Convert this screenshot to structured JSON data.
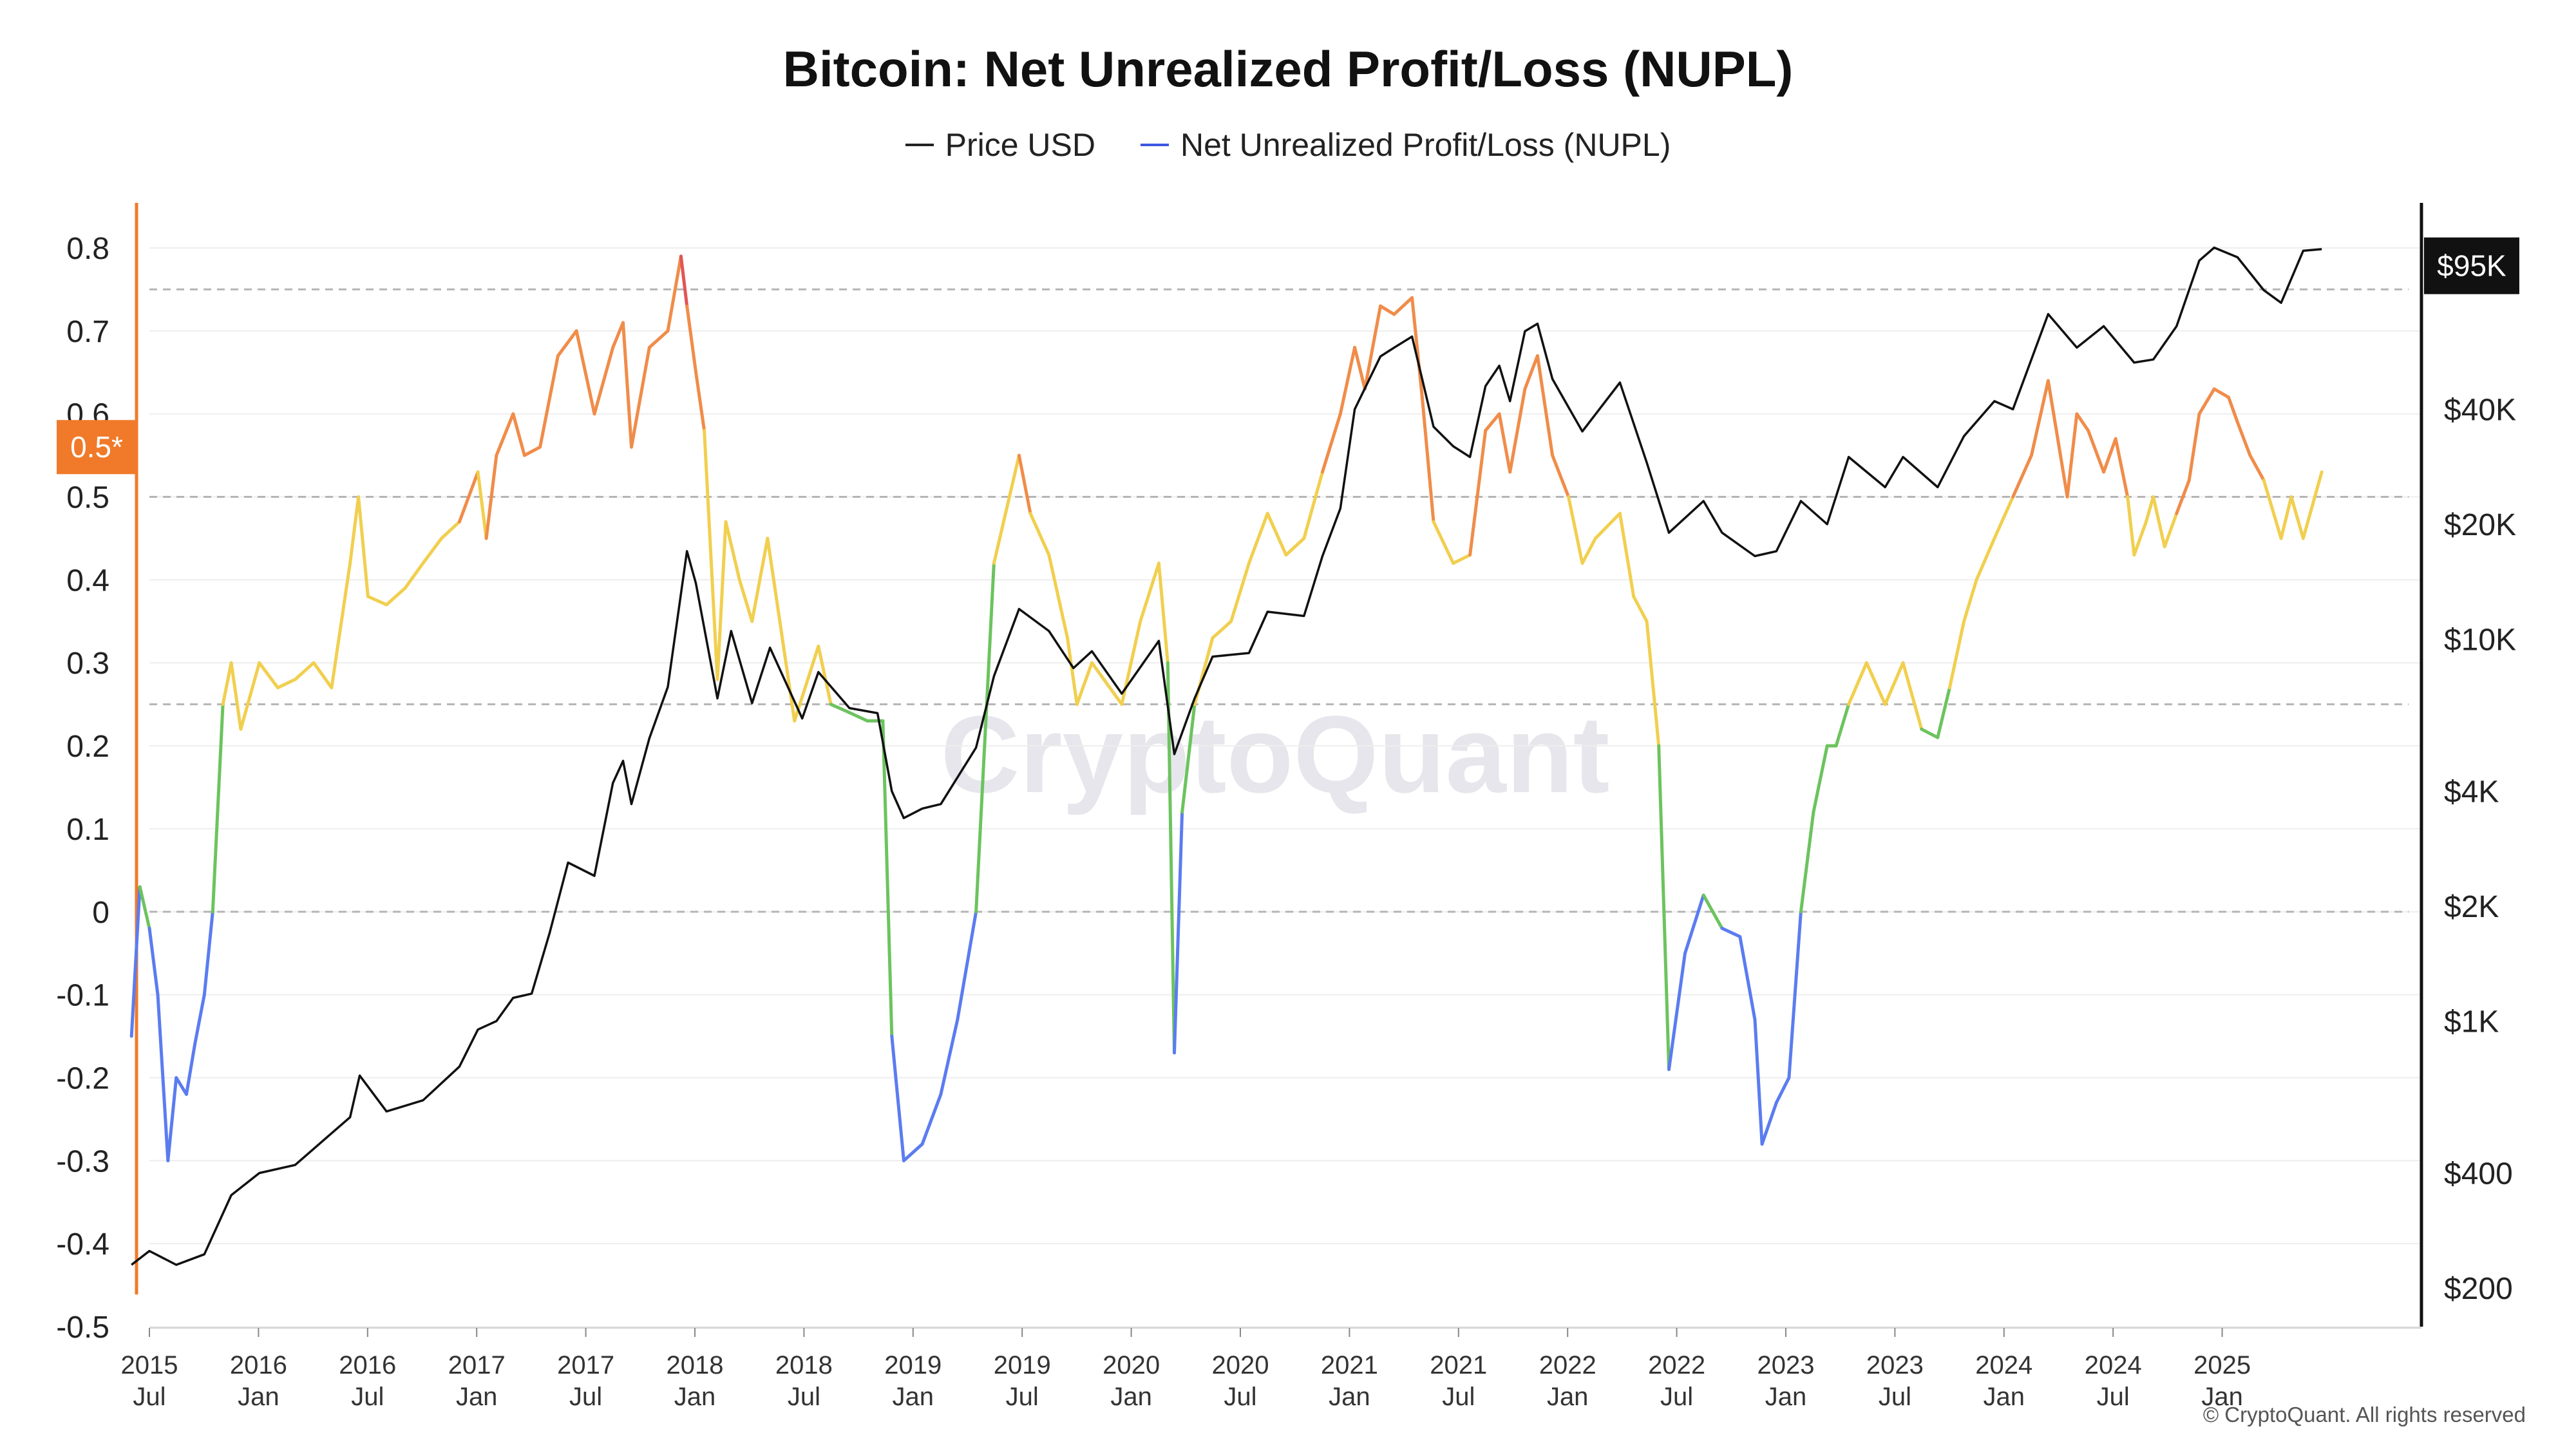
{
  "title": "Bitcoin: Net Unrealized Profit/Loss (NUPL)",
  "legend": [
    {
      "label": "Price USD",
      "color": "#222222"
    },
    {
      "label": "Net Unrealized Profit/Loss (NUPL)",
      "color": "#3d57e0"
    }
  ],
  "watermark": "CryptoQuant",
  "credit": "© CryptoQuant. All rights reserved",
  "colors": {
    "capitulation": "#5b7cf0",
    "hope_fear": "#6cc35e",
    "optimism_anxiety": "#f1cf4f",
    "belief_denial": "#f08c4a",
    "euphoria_greed": "#e25555",
    "price": "#111111",
    "left_axis": "#f07a2a",
    "right_axis": "#111111"
  },
  "chart_data": {
    "type": "line",
    "x_ticks": [
      {
        "year": "2015",
        "month": "Jul"
      },
      {
        "year": "2016",
        "month": "Jan"
      },
      {
        "year": "2016",
        "month": "Jul"
      },
      {
        "year": "2017",
        "month": "Jan"
      },
      {
        "year": "2017",
        "month": "Jul"
      },
      {
        "year": "2018",
        "month": "Jan"
      },
      {
        "year": "2018",
        "month": "Jul"
      },
      {
        "year": "2019",
        "month": "Jan"
      },
      {
        "year": "2019",
        "month": "Jul"
      },
      {
        "year": "2020",
        "month": "Jan"
      },
      {
        "year": "2020",
        "month": "Jul"
      },
      {
        "year": "2021",
        "month": "Jan"
      },
      {
        "year": "2021",
        "month": "Jul"
      },
      {
        "year": "2022",
        "month": "Jan"
      },
      {
        "year": "2022",
        "month": "Jul"
      },
      {
        "year": "2023",
        "month": "Jan"
      },
      {
        "year": "2023",
        "month": "Jul"
      },
      {
        "year": "2024",
        "month": "Jan"
      },
      {
        "year": "2024",
        "month": "Jul"
      },
      {
        "year": "2025",
        "month": "Jan"
      }
    ],
    "left_axis": {
      "ylim": [
        -0.5,
        0.8
      ],
      "ticks": [
        "0.8",
        "0.7",
        "0.6",
        "0.5",
        "0.4",
        "0.3",
        "0.2",
        "0.1",
        "0",
        "-0.1",
        "-0.2",
        "-0.3",
        "-0.4",
        "-0.5"
      ],
      "tick_values": [
        0.8,
        0.7,
        0.6,
        0.5,
        0.4,
        0.3,
        0.2,
        0.1,
        0,
        -0.1,
        -0.2,
        -0.3,
        -0.4,
        -0.5
      ],
      "badge": "0.5*",
      "badge_value": 0.56
    },
    "right_axis": {
      "scale": "log",
      "ticks": [
        "$200",
        "$400",
        "$1K",
        "$2K",
        "$4K",
        "$10K",
        "$20K",
        "$40K"
      ],
      "tick_values": [
        200,
        400,
        1000,
        2000,
        4000,
        10000,
        20000,
        40000
      ],
      "badge": "$95K",
      "badge_value": 95000
    },
    "reference_lines": [
      0.75,
      0.5,
      0.25,
      0
    ],
    "series": [
      {
        "name": "Net Unrealized Profit/Loss (NUPL)",
        "x": [
          "2015-06-01",
          "2015-06-15",
          "2015-07-01",
          "2015-07-15",
          "2015-08-01",
          "2015-08-15",
          "2015-09-01",
          "2015-09-15",
          "2015-10-01",
          "2015-10-15",
          "2015-11-01",
          "2015-11-15",
          "2015-12-01",
          "2016-01-01",
          "2016-02-01",
          "2016-03-01",
          "2016-04-01",
          "2016-05-01",
          "2016-06-01",
          "2016-06-15",
          "2016-07-01",
          "2016-08-01",
          "2016-09-01",
          "2016-10-01",
          "2016-11-01",
          "2016-12-01",
          "2017-01-01",
          "2017-01-15",
          "2017-02-01",
          "2017-03-01",
          "2017-03-20",
          "2017-04-15",
          "2017-05-15",
          "2017-06-15",
          "2017-07-15",
          "2017-08-15",
          "2017-09-01",
          "2017-09-15",
          "2017-10-15",
          "2017-11-15",
          "2017-12-07",
          "2017-12-17",
          "2018-01-01",
          "2018-01-15",
          "2018-02-06",
          "2018-02-20",
          "2018-03-15",
          "2018-04-05",
          "2018-05-01",
          "2018-06-15",
          "2018-07-25",
          "2018-08-15",
          "2018-09-15",
          "2018-10-15",
          "2018-11-10",
          "2018-11-25",
          "2018-12-15",
          "2019-01-15",
          "2019-02-15",
          "2019-03-15",
          "2019-04-15",
          "2019-05-15",
          "2019-06-26",
          "2019-07-15",
          "2019-08-15",
          "2019-09-15",
          "2019-10-01",
          "2019-10-26",
          "2019-11-15",
          "2019-12-15",
          "2020-01-15",
          "2020-02-15",
          "2020-03-01",
          "2020-03-12",
          "2020-03-25",
          "2020-04-15",
          "2020-05-15",
          "2020-06-15",
          "2020-07-15",
          "2020-08-15",
          "2020-09-15",
          "2020-10-15",
          "2020-11-15",
          "2020-12-15",
          "2021-01-08",
          "2021-01-25",
          "2021-02-20",
          "2021-03-15",
          "2021-04-14",
          "2021-05-01",
          "2021-05-20",
          "2021-06-22",
          "2021-07-20",
          "2021-08-15",
          "2021-09-07",
          "2021-09-25",
          "2021-10-20",
          "2021-11-10",
          "2021-12-05",
          "2022-01-01",
          "2022-01-24",
          "2022-02-15",
          "2022-03-28",
          "2022-04-20",
          "2022-05-12",
          "2022-06-01",
          "2022-06-18",
          "2022-07-15",
          "2022-08-15",
          "2022-09-15",
          "2022-10-15",
          "2022-11-09",
          "2022-11-21",
          "2022-12-15",
          "2023-01-05",
          "2023-01-25",
          "2023-02-15",
          "2023-03-10",
          "2023-03-25",
          "2023-04-15",
          "2023-05-15",
          "2023-06-15",
          "2023-07-15",
          "2023-08-15",
          "2023-09-11",
          "2023-10-01",
          "2023-10-25",
          "2023-11-15",
          "2023-12-15",
          "2024-01-15",
          "2024-02-15",
          "2024-03-14",
          "2024-04-15",
          "2024-05-01",
          "2024-05-20",
          "2024-06-15",
          "2024-07-05",
          "2024-07-25",
          "2024-08-05",
          "2024-08-25",
          "2024-09-06",
          "2024-09-25",
          "2024-10-15",
          "2024-11-05",
          "2024-11-22",
          "2024-12-17",
          "2025-01-10",
          "2025-01-25",
          "2025-02-15",
          "2025-03-10",
          "2025-04-08",
          "2025-04-25",
          "2025-05-15",
          "2025-06-15"
        ],
        "values": [
          -0.15,
          0.03,
          -0.02,
          -0.1,
          -0.3,
          -0.2,
          -0.22,
          -0.16,
          -0.1,
          0.0,
          0.25,
          0.3,
          0.22,
          0.3,
          0.27,
          0.28,
          0.3,
          0.27,
          0.42,
          0.5,
          0.38,
          0.37,
          0.39,
          0.42,
          0.45,
          0.47,
          0.53,
          0.45,
          0.55,
          0.6,
          0.55,
          0.56,
          0.67,
          0.7,
          0.6,
          0.68,
          0.71,
          0.56,
          0.68,
          0.7,
          0.79,
          0.73,
          0.65,
          0.58,
          0.28,
          0.47,
          0.4,
          0.35,
          0.45,
          0.23,
          0.32,
          0.25,
          0.24,
          0.23,
          0.23,
          -0.15,
          -0.3,
          -0.28,
          -0.22,
          -0.13,
          0.0,
          0.42,
          0.55,
          0.48,
          0.43,
          0.33,
          0.25,
          0.3,
          0.28,
          0.25,
          0.35,
          0.42,
          0.3,
          -0.17,
          0.12,
          0.25,
          0.33,
          0.35,
          0.42,
          0.48,
          0.43,
          0.45,
          0.53,
          0.6,
          0.68,
          0.63,
          0.73,
          0.72,
          0.74,
          0.62,
          0.47,
          0.42,
          0.43,
          0.58,
          0.6,
          0.53,
          0.63,
          0.67,
          0.55,
          0.5,
          0.42,
          0.45,
          0.48,
          0.38,
          0.35,
          0.2,
          -0.19,
          -0.05,
          0.02,
          -0.02,
          -0.03,
          -0.13,
          -0.28,
          -0.23,
          -0.2,
          0.0,
          0.12,
          0.2,
          0.2,
          0.25,
          0.3,
          0.25,
          0.3,
          0.22,
          0.21,
          0.27,
          0.35,
          0.4,
          0.45,
          0.5,
          0.55,
          0.64,
          0.5,
          0.6,
          0.58,
          0.53,
          0.57,
          0.5,
          0.43,
          0.47,
          0.5,
          0.44,
          0.48,
          0.52,
          0.6,
          0.63,
          0.62,
          0.59,
          0.55,
          0.52,
          0.45,
          0.5,
          0.45,
          0.53
        ]
      },
      {
        "name": "Price USD",
        "x": [
          "2015-06-01",
          "2015-07-01",
          "2015-08-15",
          "2015-10-01",
          "2015-11-15",
          "2016-01-01",
          "2016-03-01",
          "2016-06-01",
          "2016-06-17",
          "2016-08-01",
          "2016-10-01",
          "2016-12-01",
          "2017-01-01",
          "2017-02-01",
          "2017-03-01",
          "2017-04-01",
          "2017-05-01",
          "2017-06-01",
          "2017-07-15",
          "2017-08-15",
          "2017-09-01",
          "2017-09-15",
          "2017-10-15",
          "2017-11-15",
          "2017-12-17",
          "2018-01-01",
          "2018-02-06",
          "2018-03-01",
          "2018-04-05",
          "2018-05-05",
          "2018-06-28",
          "2018-07-25",
          "2018-09-15",
          "2018-11-01",
          "2018-11-25",
          "2018-12-15",
          "2019-01-15",
          "2019-02-15",
          "2019-04-15",
          "2019-05-15",
          "2019-06-26",
          "2019-08-15",
          "2019-09-25",
          "2019-10-26",
          "2019-12-15",
          "2020-02-15",
          "2020-03-12",
          "2020-04-15",
          "2020-05-15",
          "2020-07-15",
          "2020-08-15",
          "2020-10-15",
          "2020-11-15",
          "2020-12-15",
          "2021-01-08",
          "2021-02-20",
          "2021-03-15",
          "2021-04-14",
          "2021-05-20",
          "2021-06-22",
          "2021-07-20",
          "2021-08-15",
          "2021-09-07",
          "2021-09-25",
          "2021-10-20",
          "2021-11-10",
          "2021-12-05",
          "2022-01-24",
          "2022-03-28",
          "2022-05-12",
          "2022-06-18",
          "2022-08-15",
          "2022-09-15",
          "2022-11-09",
          "2022-12-15",
          "2023-01-25",
          "2023-03-10",
          "2023-04-15",
          "2023-06-15",
          "2023-07-15",
          "2023-09-11",
          "2023-10-25",
          "2023-12-15",
          "2024-01-15",
          "2024-03-14",
          "2024-05-01",
          "2024-06-15",
          "2024-08-05",
          "2024-09-06",
          "2024-10-15",
          "2024-11-22",
          "2024-12-17",
          "2025-01-25",
          "2025-03-10",
          "2025-04-08",
          "2025-05-15",
          "2025-06-15"
        ],
        "values": [
          230,
          250,
          230,
          245,
          350,
          400,
          420,
          560,
          720,
          580,
          620,
          760,
          950,
          1000,
          1150,
          1180,
          1700,
          2600,
          2400,
          4200,
          4800,
          3700,
          5500,
          7500,
          17000,
          14000,
          7000,
          10500,
          6800,
          9500,
          6200,
          8200,
          6600,
          6400,
          4000,
          3400,
          3600,
          3700,
          5200,
          8000,
          12000,
          10500,
          8400,
          9300,
          7200,
          9900,
          5000,
          7000,
          9000,
          9200,
          11800,
          11500,
          16500,
          22000,
          40000,
          55000,
          58000,
          62000,
          36000,
          32000,
          30000,
          46000,
          52000,
          42000,
          64000,
          67000,
          48000,
          35000,
          47000,
          29000,
          19000,
          23000,
          19000,
          16500,
          17000,
          23000,
          20000,
          30000,
          25000,
          30000,
          25000,
          34000,
          42000,
          40000,
          71000,
          58000,
          66000,
          53000,
          54000,
          66000,
          98000,
          106000,
          100000,
          82000,
          76000,
          104000,
          105000
        ]
      }
    ]
  }
}
